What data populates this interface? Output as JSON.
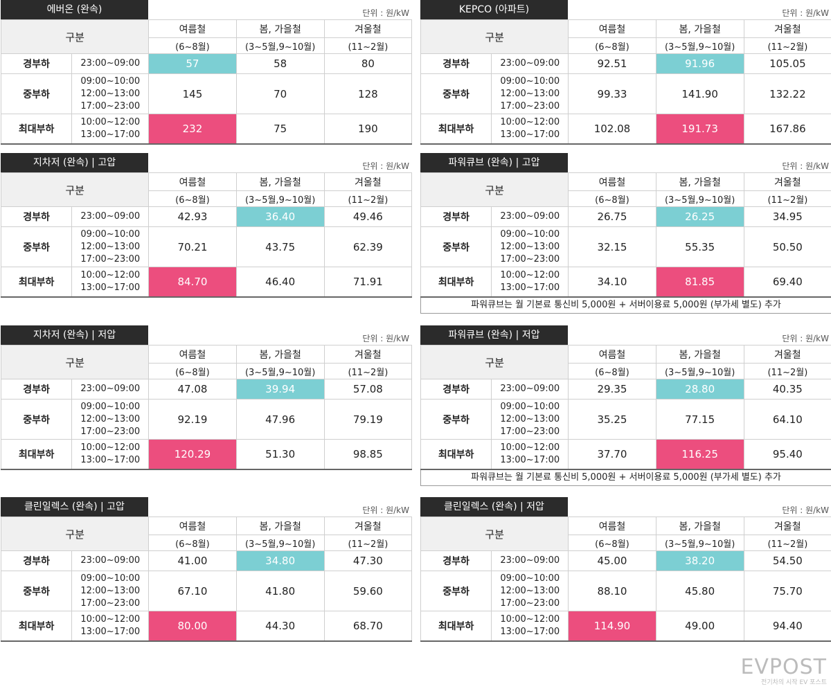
{
  "headers": {
    "gubun": "구분",
    "summer": "여름철",
    "summer_period": "(6~8월)",
    "spring_fall": "봄, 가을철",
    "spring_fall_period": "(3~5월,9~10월)",
    "winter": "겨울철",
    "winter_period": "(11~2월)"
  },
  "loads": {
    "light": "경부하",
    "mid": "중부하",
    "peak": "최대부하"
  },
  "times": {
    "light": "23:00~09:00",
    "mid_1": "09:00~10:00",
    "mid_2": "12:00~13:00",
    "mid_3": "17:00~23:00",
    "peak_1": "10:00~12:00",
    "peak_2": "13:00~17:00"
  },
  "unit": "단위 : 원/kW",
  "tables": [
    {
      "title": "에버온 (완속)",
      "values": [
        [
          "57",
          "58",
          "80"
        ],
        [
          "145",
          "70",
          "128"
        ],
        [
          "232",
          "75",
          "190"
        ]
      ],
      "note": ""
    },
    {
      "title": "KEPCO (아파트)",
      "values": [
        [
          "92.51",
          "91.96",
          "105.05"
        ],
        [
          "99.33",
          "141.90",
          "132.22"
        ],
        [
          "102.08",
          "191.73",
          "167.86"
        ]
      ],
      "note": ""
    },
    {
      "title": "지차저 (완속) | 고압",
      "values": [
        [
          "42.93",
          "36.40",
          "49.46"
        ],
        [
          "70.21",
          "43.75",
          "62.39"
        ],
        [
          "84.70",
          "46.40",
          "71.91"
        ]
      ],
      "note": ""
    },
    {
      "title": "파워큐브 (완속) | 고압",
      "values": [
        [
          "26.75",
          "26.25",
          "34.95"
        ],
        [
          "32.15",
          "55.35",
          "50.50"
        ],
        [
          "34.10",
          "81.85",
          "69.40"
        ]
      ],
      "note": "파워큐브는 월 기본료 통신비 5,000원 + 서버이용료 5,000원 (부가세 별도) 추가"
    },
    {
      "title": "지차저 (완속) | 저압",
      "values": [
        [
          "47.08",
          "39.94",
          "57.08"
        ],
        [
          "92.19",
          "47.96",
          "79.19"
        ],
        [
          "120.29",
          "51.30",
          "98.85"
        ]
      ],
      "note": ""
    },
    {
      "title": "파워큐브 (완속) | 저압",
      "values": [
        [
          "29.35",
          "28.80",
          "40.35"
        ],
        [
          "35.25",
          "77.15",
          "64.10"
        ],
        [
          "37.70",
          "116.25",
          "95.40"
        ]
      ],
      "note": "파워큐브는 월 기본료 통신비 5,000원 + 서버이용료 5,000원 (부가세 별도) 추가"
    },
    {
      "title": "클린일렉스 (완속) | 고압",
      "values": [
        [
          "41.00",
          "34.80",
          "47.30"
        ],
        [
          "67.10",
          "41.80",
          "59.60"
        ],
        [
          "80.00",
          "44.30",
          "68.70"
        ]
      ],
      "note": ""
    },
    {
      "title": "클린일렉스 (완속) | 저압",
      "values": [
        [
          "45.00",
          "38.20",
          "54.50"
        ],
        [
          "88.10",
          "45.80",
          "75.70"
        ],
        [
          "114.90",
          "49.00",
          "94.40"
        ]
      ],
      "note": ""
    }
  ],
  "colors": {
    "title_bg": "#2b2b2b",
    "lowest": "#7ccfd3",
    "highest": "#ec4e7e",
    "header_bg": "#f0f0f0"
  },
  "logo": {
    "main": "EVPOST",
    "sub": "전기차의 시작 EV 포스트"
  }
}
